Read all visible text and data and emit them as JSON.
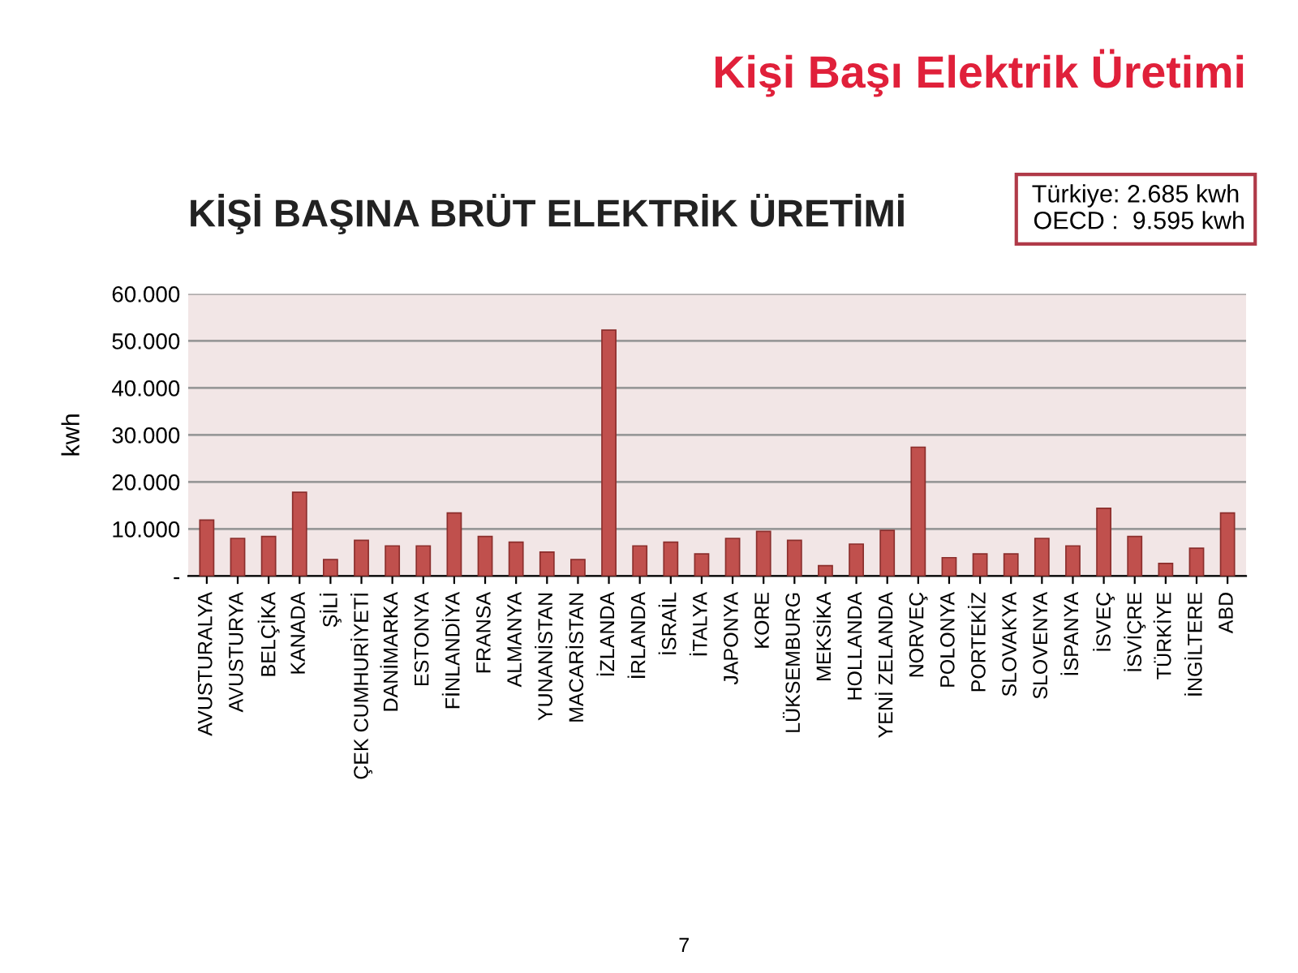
{
  "chart_data": {
    "type": "bar",
    "title": "Kişi Başı Elektrik Üretimi",
    "subtitle": "KİŞİ BAŞINA BRÜT ELEKTRİK ÜRETİMİ",
    "ylabel": "kwh",
    "categories": [
      "AVUSTURALYA",
      "AVUSTURYA",
      "BELÇİKA",
      "KANADA",
      "ŞİLİ",
      "ÇEK CUMHURİYETİ",
      "DANİMARKA",
      "ESTONYA",
      "FİNLANDİYA",
      "FRANSA",
      "ALMANYA",
      "YUNANİSTAN",
      "MACARİSTAN",
      "İZLANDA",
      "İRLANDA",
      "İSRAİL",
      "İTALYA",
      "JAPONYA",
      "KORE",
      "LÜKSEMBURG",
      "MEKSİKA",
      "HOLLANDA",
      "YENİ ZELANDA",
      "NORVEÇ",
      "POLONYA",
      "PORTEKİZ",
      "SLOVAKYA",
      "SLOVENYA",
      "İSPANYA",
      "İSVEÇ",
      "İSVİÇRE",
      "TÜRKİYE",
      "İNGİLTERE",
      "ABD"
    ],
    "values": [
      11900,
      8000,
      8400,
      17800,
      3500,
      7600,
      6400,
      6400,
      13400,
      8400,
      7200,
      5100,
      3500,
      52300,
      6400,
      7200,
      4700,
      8000,
      9500,
      7600,
      2200,
      6800,
      9700,
      27400,
      3900,
      4700,
      4700,
      8000,
      6400,
      14400,
      8400,
      2685,
      5900,
      13400
    ],
    "color": "#c0504d",
    "ylim": [
      0,
      60000
    ],
    "yticks": [
      {
        "value": 0,
        "label": "-"
      },
      {
        "value": 10000,
        "label": "10.000"
      },
      {
        "value": 20000,
        "label": "20.000"
      },
      {
        "value": 30000,
        "label": "30.000"
      },
      {
        "value": 40000,
        "label": "40.000"
      },
      {
        "value": 50000,
        "label": "50.000"
      },
      {
        "value": 60000,
        "label": "60.000"
      }
    ],
    "grid": "y",
    "annotations": [
      "Türkiye: 2.685 kwh\n OECD :  9.595 kwh",
      "7"
    ]
  }
}
